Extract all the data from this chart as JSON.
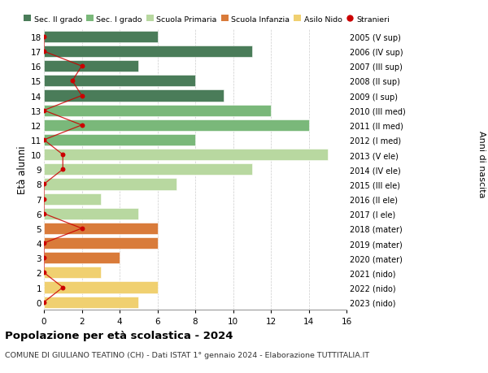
{
  "ages": [
    18,
    17,
    16,
    15,
    14,
    13,
    12,
    11,
    10,
    9,
    8,
    7,
    6,
    5,
    4,
    3,
    2,
    1,
    0
  ],
  "right_labels": [
    "2005 (V sup)",
    "2006 (IV sup)",
    "2007 (III sup)",
    "2008 (II sup)",
    "2009 (I sup)",
    "2010 (III med)",
    "2011 (II med)",
    "2012 (I med)",
    "2013 (V ele)",
    "2014 (IV ele)",
    "2015 (III ele)",
    "2016 (II ele)",
    "2017 (I ele)",
    "2018 (mater)",
    "2019 (mater)",
    "2020 (mater)",
    "2021 (nido)",
    "2022 (nido)",
    "2023 (nido)"
  ],
  "bar_values": [
    6,
    11,
    5,
    8,
    9.5,
    12,
    14,
    8,
    15,
    11,
    7,
    3,
    5,
    6,
    6,
    4,
    3,
    6,
    5
  ],
  "bar_colors": [
    "#4a7c59",
    "#4a7c59",
    "#4a7c59",
    "#4a7c59",
    "#4a7c59",
    "#7ab87a",
    "#7ab87a",
    "#7ab87a",
    "#b8d8a0",
    "#b8d8a0",
    "#b8d8a0",
    "#b8d8a0",
    "#b8d8a0",
    "#d97b3a",
    "#d97b3a",
    "#d97b3a",
    "#f0d070",
    "#f0d070",
    "#f0d070"
  ],
  "stranieri_x": [
    0,
    0,
    2,
    1.5,
    2,
    0,
    2,
    0,
    1,
    1,
    0,
    0,
    0,
    2,
    0,
    0,
    0,
    1,
    0
  ],
  "legend_labels": [
    "Sec. II grado",
    "Sec. I grado",
    "Scuola Primaria",
    "Scuola Infanzia",
    "Asilo Nido",
    "Stranieri"
  ],
  "legend_colors": [
    "#4a7c59",
    "#7ab87a",
    "#b8d8a0",
    "#d97b3a",
    "#f0d070",
    "#cc0000"
  ],
  "title": "Popolazione per età scolastica - 2024",
  "subtitle": "COMUNE DI GIULIANO TEATINO (CH) - Dati ISTAT 1° gennaio 2024 - Elaborazione TUTTITALIA.IT",
  "ylabel_left": "Età alunni",
  "ylabel_right": "Anni di nascita",
  "xlim": [
    0,
    16
  ],
  "xticks": [
    0,
    2,
    4,
    6,
    8,
    10,
    12,
    14,
    16
  ],
  "ylim": [
    -0.5,
    18.5
  ],
  "bg_color": "#ffffff",
  "grid_color": "#cccccc",
  "bar_height": 0.78
}
